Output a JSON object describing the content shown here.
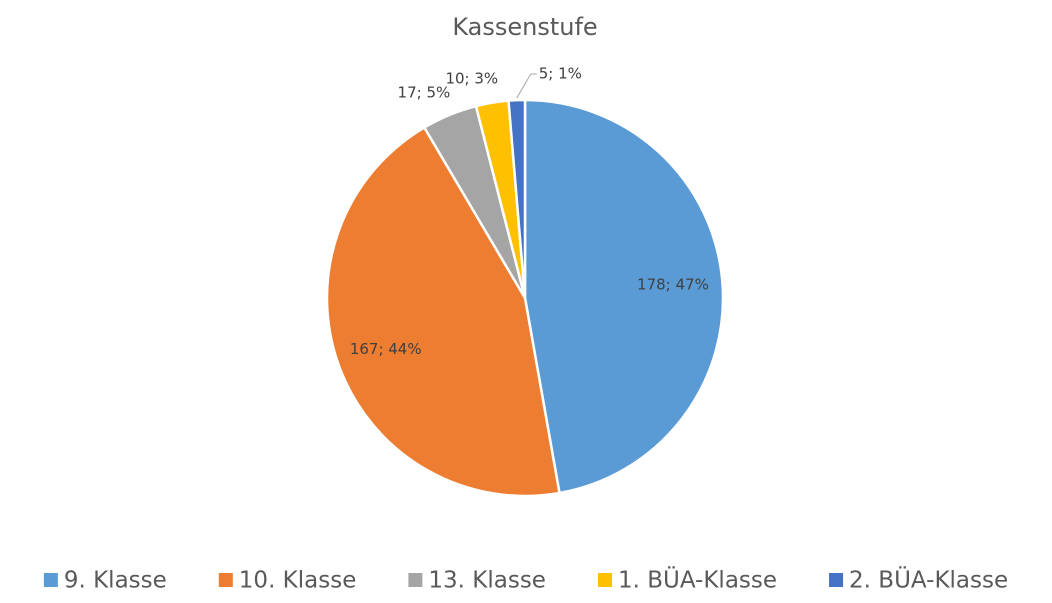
{
  "chart_data": {
    "type": "pie",
    "title": "Kassenstufe",
    "categories": [
      "9. Klasse",
      "10. Klasse",
      "13. Klasse",
      "1. BÜA-Klasse",
      "2. BÜA-Klasse"
    ],
    "values": [
      178,
      167,
      17,
      10,
      5
    ],
    "value_labels": [
      "178; 47%",
      "167; 44%",
      "17; 5%",
      "10; 3%",
      "5; 1%"
    ],
    "colors": [
      "#5b9bd5",
      "#ed7d31",
      "#a5a5a5",
      "#ffc000",
      "#4472c4"
    ],
    "legend": "bottom"
  }
}
